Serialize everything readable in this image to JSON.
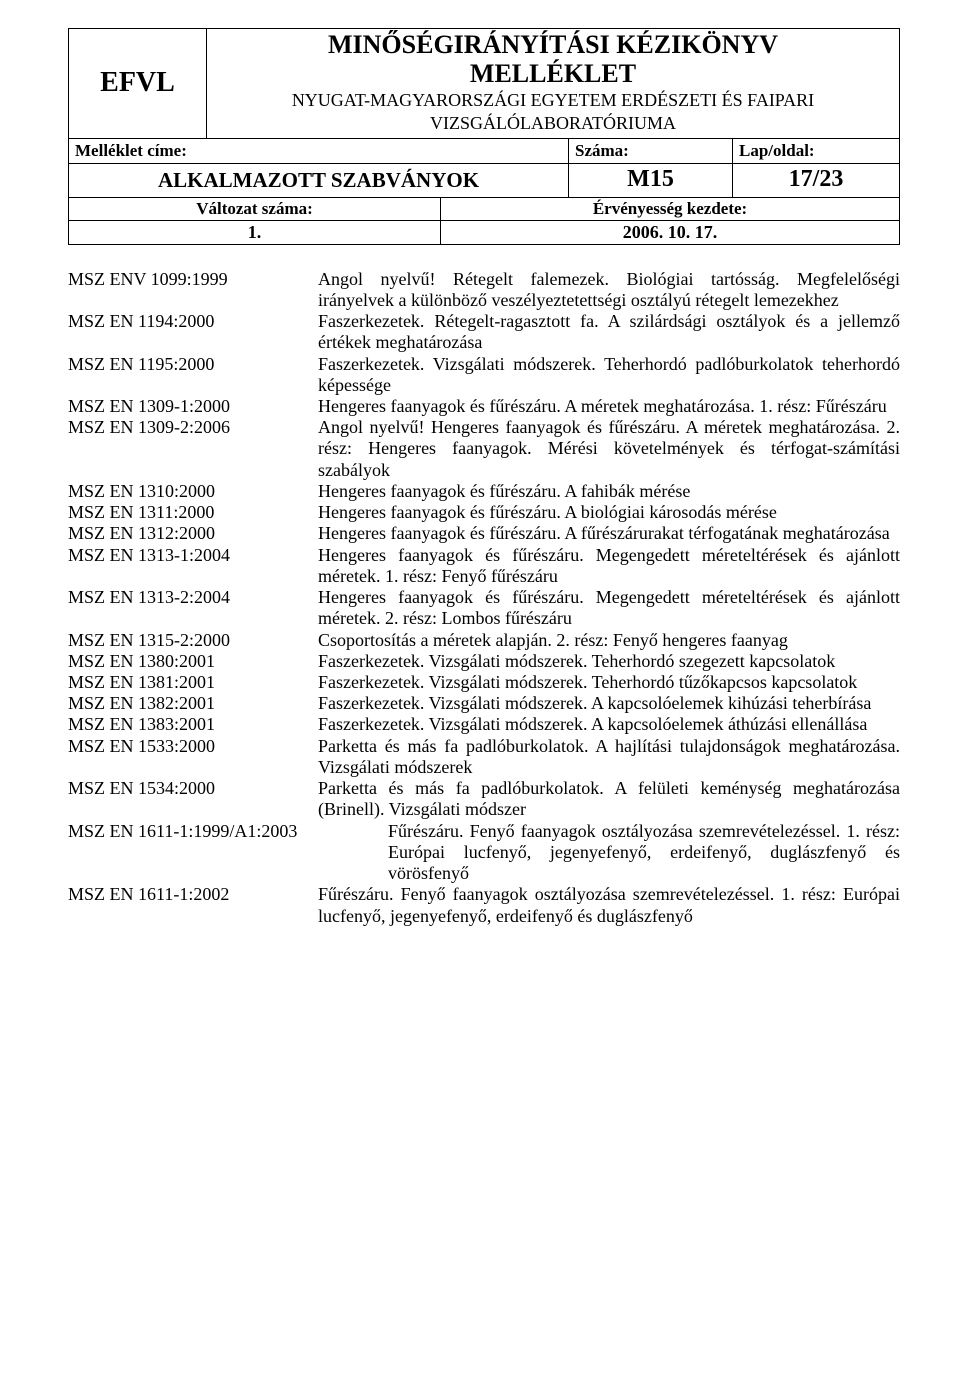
{
  "header": {
    "logo": "EFVL",
    "title1": "MINŐSÉGIRÁNYÍTÁSI KÉZIKÖNYV",
    "title2": "MELLÉKLET",
    "sub1": "NYUGAT-MAGYARORSZÁGI EGYETEM ERDÉSZETI ÉS FAIPARI",
    "sub2": "VIZSGÁLÓLABORATÓRIUMA",
    "mell_cime": "Melléklet címe:",
    "szama": "Száma:",
    "lap": "Lap/oldal:",
    "alk": "ALKALMAZOTT SZABVÁNYOK",
    "m15": "M15",
    "page": "17/23",
    "valt_lbl": "Változat száma:",
    "erv_lbl": "Érvényesség kezdete:",
    "valt_val": "1.",
    "erv_val": "2006. 10. 17."
  },
  "entries": [
    {
      "code": "MSZ ENV 1099:1999",
      "desc": "Angol nyelvű! Rétegelt falemezek. Biológiai tartósság. Megfelelőségi irányelvek a különböző veszélyeztetettségi osztályú rétegelt lemezekhez"
    },
    {
      "code": "MSZ EN 1194:2000",
      "desc": "Faszerkezetek. Rétegelt-ragasztott fa. A szilárdsági osztályok és a jellemző értékek meghatározása"
    },
    {
      "code": "MSZ EN 1195:2000",
      "desc": "Faszerkezetek. Vizsgálati módszerek. Teherhordó padlóburkolatok teherhordó képessége"
    },
    {
      "code": "MSZ EN 1309-1:2000",
      "desc": "Hengeres faanyagok és fűrészáru. A méretek meghatározása. 1. rész: Fűrészáru"
    },
    {
      "code": "MSZ EN 1309-2:2006",
      "desc": "Angol nyelvű! Hengeres faanyagok és fűrészáru. A méretek meghatározása. 2. rész: Hengeres faanyagok. Mérési követelmények és térfogat-számítási szabályok"
    },
    {
      "code": "MSZ EN 1310:2000",
      "desc": "Hengeres faanyagok és fűrészáru. A fahibák mérése"
    },
    {
      "code": "MSZ EN 1311:2000",
      "desc": "Hengeres faanyagok és fűrészáru. A biológiai károsodás mérése"
    },
    {
      "code": "MSZ EN 1312:2000",
      "desc": "Hengeres faanyagok és fűrészáru. A fűrészárurakat térfogatának meghatározása"
    },
    {
      "code": "MSZ EN 1313-1:2004",
      "desc": "Hengeres faanyagok és fűrészáru. Megengedett méreteltérések és ajánlott méretek. 1. rész: Fenyő fűrészáru"
    },
    {
      "code": "MSZ EN 1313-2:2004",
      "desc": "Hengeres faanyagok és fűrészáru. Megengedett méreteltérések és ajánlott méretek. 2. rész: Lombos fűrészáru"
    },
    {
      "code": "MSZ EN 1315-2:2000",
      "desc": "Csoportosítás a méretek alapján. 2. rész: Fenyő hengeres faanyag"
    },
    {
      "code": "MSZ EN 1380:2001",
      "desc": "Faszerkezetek. Vizsgálati módszerek. Teherhordó szegezett kapcsolatok"
    },
    {
      "code": "MSZ EN 1381:2001",
      "desc": "Faszerkezetek. Vizsgálati módszerek. Teherhordó tűzőkapcsos kapcsolatok"
    },
    {
      "code": "MSZ EN 1382:2001",
      "desc": "Faszerkezetek. Vizsgálati módszerek. A kapcsolóelemek kihúzási teherbírása"
    },
    {
      "code": "MSZ EN 1383:2001",
      "desc": "Faszerkezetek. Vizsgálati módszerek. A kapcsolóelemek áthúzási ellenállása"
    },
    {
      "code": "MSZ EN 1533:2000",
      "desc": "Parketta és más fa padlóburkolatok. A hajlítási tulajdonságok meghatározása. Vizsgálati módszerek"
    },
    {
      "code": "MSZ EN 1534:2000",
      "desc": "Parketta és más fa padlóburkolatok. A felületi keménység meghatározása (Brinell). Vizsgálati módszer"
    },
    {
      "code": "MSZ EN 1611-1:1999/A1:2003",
      "desc": "Fűrészáru. Fenyő faanyagok osztályozása szemrevételezéssel. 1. rész: Európai lucfenyő, jegenyefenyő, erdeifenyő, duglászfenyő és vörösfenyő",
      "wide": true
    },
    {
      "code": "MSZ EN 1611-1:2002",
      "desc": "Fűrészáru. Fenyő faanyagok osztályozása szemrevételezéssel. 1. rész: Európai lucfenyő, jegenyefenyő, erdeifenyő és duglászfenyő"
    }
  ]
}
